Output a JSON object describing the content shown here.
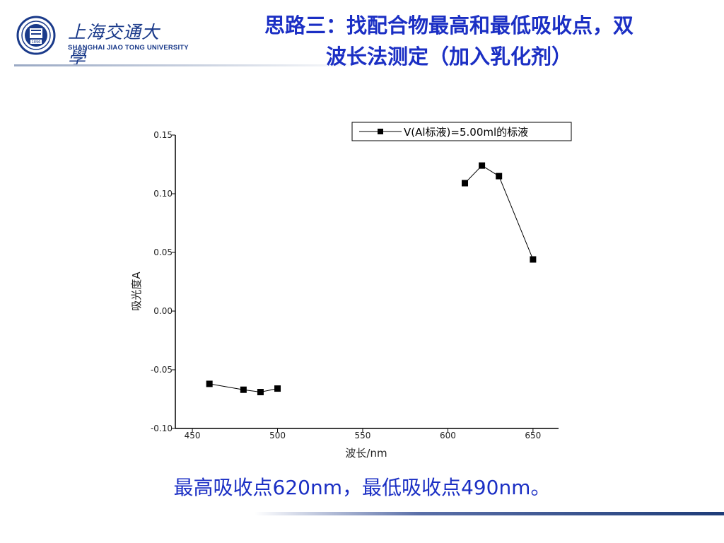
{
  "header": {
    "logo_cn": "上海交通大學",
    "logo_en": "SHANGHAI JIAO TONG UNIVERSITY",
    "logo_emblem_year": "1896",
    "title_line1": "思路三：找配合物最高和最低吸收点，双",
    "title_line2": "波长法测定（加入乳化剂）"
  },
  "caption": "最高吸收点620nm，最低吸收点490nm。",
  "colors": {
    "title": "#1b2fc4",
    "caption": "#1b2fc4",
    "brand": "#1a3a8a"
  },
  "chart_data": {
    "type": "line",
    "xlabel": "波长/nm",
    "ylabel": "吸光度A",
    "xlim": [
      440,
      665
    ],
    "ylim": [
      -0.1,
      0.15
    ],
    "x_ticks": [
      "450",
      "500",
      "550",
      "600",
      "650"
    ],
    "y_ticks": [
      "0.15",
      "0.10",
      "0.05",
      "0.00",
      "-0.05",
      "-0.10"
    ],
    "legend_position": "top-right",
    "series": [
      {
        "name": "V(Al标液)=5.00ml的标液",
        "segments": [
          [
            [
              460,
              -0.062
            ],
            [
              480,
              -0.067
            ],
            [
              490,
              -0.069
            ],
            [
              500,
              -0.066
            ]
          ],
          [
            [
              610,
              0.109
            ],
            [
              620,
              0.124
            ],
            [
              630,
              0.115
            ],
            [
              650,
              0.044
            ]
          ]
        ]
      }
    ]
  }
}
